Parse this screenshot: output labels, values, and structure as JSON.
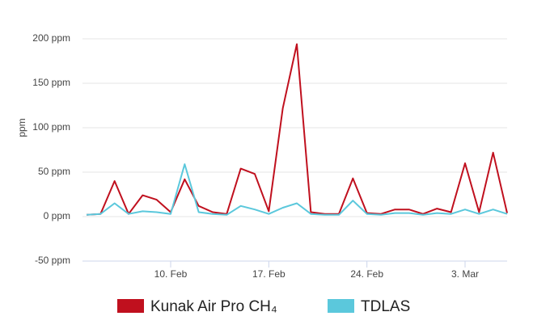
{
  "chart_data": {
    "type": "line",
    "y_label": "ppm",
    "x": [
      "02-04",
      "02-05",
      "02-06",
      "02-07",
      "02-08",
      "02-09",
      "02-10",
      "02-11",
      "02-12",
      "02-13",
      "02-14",
      "02-15",
      "02-16",
      "02-17",
      "02-18",
      "02-19",
      "02-20",
      "02-21",
      "02-22",
      "02-23",
      "02-24",
      "02-25",
      "02-26",
      "02-27",
      "02-28",
      "03-01",
      "03-02",
      "03-03",
      "03-04",
      "03-05",
      "03-06"
    ],
    "series": [
      {
        "name": "Kunak Air Pro CH₄",
        "color": "#c0101e",
        "values": [
          2,
          3,
          40,
          3,
          24,
          19,
          5,
          42,
          12,
          5,
          3,
          54,
          48,
          6,
          122,
          194,
          5,
          3,
          3,
          43,
          4,
          3,
          8,
          8,
          3,
          9,
          5,
          60,
          5,
          72,
          4
        ]
      },
      {
        "name": "TDLAS",
        "color": "#5bc8dc",
        "values": [
          2,
          3,
          15,
          3,
          6,
          5,
          3,
          59,
          5,
          3,
          2,
          12,
          8,
          3,
          10,
          15,
          3,
          2,
          2,
          18,
          3,
          2,
          4,
          4,
          2,
          4,
          3,
          8,
          3,
          8,
          3
        ]
      }
    ],
    "xlim": [
      "02-04",
      "03-06"
    ],
    "xticks": [
      {
        "value": "02-10",
        "label": "10. Feb"
      },
      {
        "value": "02-17",
        "label": "17. Feb"
      },
      {
        "value": "02-24",
        "label": "24. Feb"
      },
      {
        "value": "03-03",
        "label": "3. Mar"
      }
    ],
    "ylim": [
      -50,
      200
    ],
    "yticks": [
      {
        "value": -50,
        "label": "-50 ppm"
      },
      {
        "value": 0,
        "label": "0 ppm"
      },
      {
        "value": 50,
        "label": "50 ppm"
      },
      {
        "value": 100,
        "label": "100 ppm"
      },
      {
        "value": 150,
        "label": "150 ppm"
      },
      {
        "value": 200,
        "label": "200 ppm"
      }
    ],
    "grid": true
  }
}
